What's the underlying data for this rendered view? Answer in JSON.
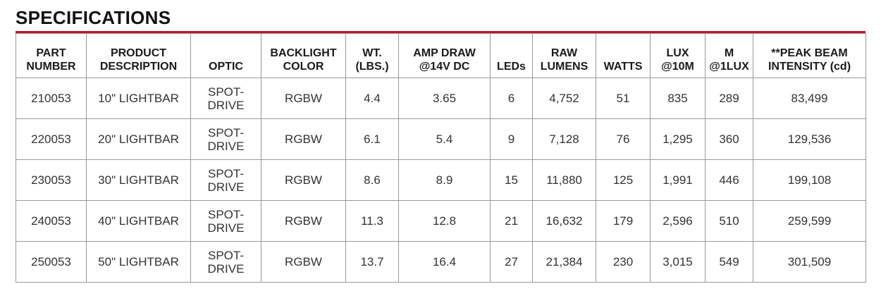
{
  "header": {
    "title": "SPECIFICATIONS"
  },
  "table": {
    "columns": [
      [
        "PART",
        "NUMBER"
      ],
      [
        "PRODUCT",
        "DESCRIPTION"
      ],
      [
        "OPTIC"
      ],
      [
        "BACKLIGHT",
        "COLOR"
      ],
      [
        "WT.",
        "(LBS.)"
      ],
      [
        "AMP DRAW",
        "@14V DC"
      ],
      [
        "LEDs"
      ],
      [
        "RAW",
        "LUMENS"
      ],
      [
        "WATTS"
      ],
      [
        "LUX",
        "@10M"
      ],
      [
        "M",
        "@1LUX"
      ],
      [
        "**PEAK BEAM",
        "INTENSITY (cd)"
      ]
    ],
    "rows": [
      [
        "210053",
        "10\" LIGHTBAR",
        "SPOT-DRIVE",
        "RGBW",
        "4.4",
        "3.65",
        "6",
        "4,752",
        "51",
        "835",
        "289",
        "83,499"
      ],
      [
        "220053",
        "20\" LIGHTBAR",
        "SPOT-DRIVE",
        "RGBW",
        "6.1",
        "5.4",
        "9",
        "7,128",
        "76",
        "1,295",
        "360",
        "129,536"
      ],
      [
        "230053",
        "30\" LIGHTBAR",
        "SPOT-DRIVE",
        "RGBW",
        "8.6",
        "8.9",
        "15",
        "11,880",
        "125",
        "1,991",
        "446",
        "199,108"
      ],
      [
        "240053",
        "40\" LIGHTBAR",
        "SPOT-DRIVE",
        "RGBW",
        "11.3",
        "12.8",
        "21",
        "16,632",
        "179",
        "2,596",
        "510",
        "259,599"
      ],
      [
        "250053",
        "50\" LIGHTBAR",
        "SPOT-DRIVE",
        "RGBW",
        "13.7",
        "16.4",
        "27",
        "21,384",
        "230",
        "3,015",
        "549",
        "301,509"
      ]
    ]
  }
}
